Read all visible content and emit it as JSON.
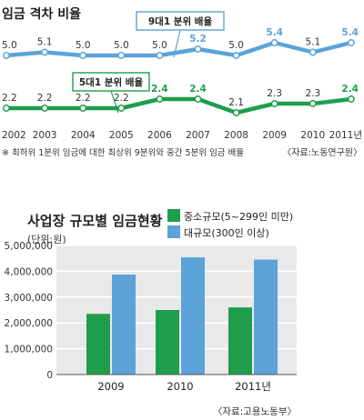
{
  "chart_data": [
    {
      "type": "line",
      "title": "임금 격차 비율",
      "categories": [
        "2002",
        "2003",
        "2004",
        "2005",
        "2006",
        "2007",
        "2008",
        "2009",
        "2010",
        "2011년"
      ],
      "series": [
        {
          "name": "9대1 분위 배율",
          "color": "#5ba3d9",
          "values": [
            5.0,
            5.1,
            5.0,
            5.0,
            5.0,
            5.2,
            5.0,
            5.4,
            5.1,
            5.4
          ],
          "labels": [
            "5.0",
            "5.1",
            "5.0",
            "5.0",
            "5.0",
            "5.2",
            "5.0",
            "5.4",
            "5.1",
            "5.4"
          ]
        },
        {
          "name": "5대1 분위 배율",
          "color": "#1e9e4a",
          "values": [
            2.2,
            2.2,
            2.2,
            2.2,
            2.4,
            2.4,
            2.1,
            2.3,
            2.3,
            2.4
          ],
          "labels": [
            "2.2",
            "2.2",
            "2.2",
            "2.2",
            "2.4",
            "2.4",
            "2.1",
            "2.3",
            "2.3",
            "2.4"
          ]
        }
      ],
      "footnote": "※ 최하위 1분위 임금에 대한 최상위 9분위와 중간 5분위 임금 배율",
      "source": "〈자료:노동연구원〉"
    },
    {
      "type": "bar",
      "title": "사업장 규모별 임금현황",
      "unit": "(단위:원)",
      "categories": [
        "2009",
        "2010",
        "2011년"
      ],
      "ylim": [
        0,
        5000000
      ],
      "yticks": [
        "0",
        "1,000,000",
        "2,000,000",
        "3,000,000",
        "4,000,000",
        "5,000,000"
      ],
      "grid": true,
      "legend": "top-right",
      "series": [
        {
          "name": "중소규모(5~299인 미만)",
          "color": "#1e9e4a",
          "values": [
            2350000,
            2500000,
            2600000
          ]
        },
        {
          "name": "대규모(300인 이상)",
          "color": "#5ba3d9",
          "values": [
            3870000,
            4540000,
            4450000
          ]
        }
      ],
      "source": "〈자료:고용노동부〉"
    }
  ]
}
